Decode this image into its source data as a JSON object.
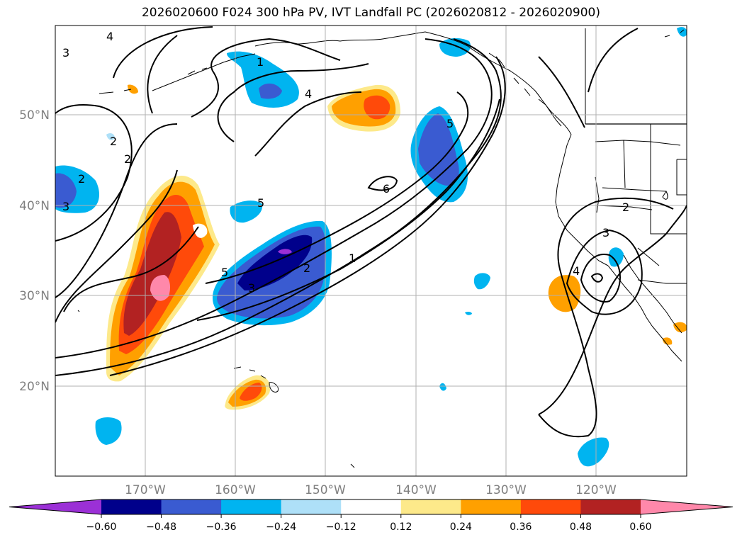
{
  "title": "2026020600 F024 300 hPa PV, IVT Landfall PC (2026020812 - 2026020900)",
  "axes": {
    "lat_ticks": [
      "50°N",
      "40°N",
      "30°N",
      "20°N"
    ],
    "lon_ticks": [
      "170°W",
      "160°W",
      "150°W",
      "140°W",
      "130°W",
      "120°W"
    ]
  },
  "colorbar": {
    "tick_labels": [
      "−0.60",
      "−0.48",
      "−0.36",
      "−0.24",
      "−0.12",
      "0.12",
      "0.24",
      "0.36",
      "0.48",
      "0.60"
    ],
    "colors": [
      "#9b30d6",
      "#00008b",
      "#3a5bd1",
      "#00b4f0",
      "#aee0f8",
      "#ffffff",
      "#fde98a",
      "#ffa000",
      "#ff4a0a",
      "#b22222",
      "#ff88aa"
    ],
    "extend": "both"
  },
  "contour_labels": [
    "4",
    "1",
    "4",
    "3",
    "2",
    "2",
    "5",
    "6",
    "5",
    "5",
    "2",
    "1",
    "3",
    "2",
    "3",
    "4",
    "2",
    "3"
  ]
}
